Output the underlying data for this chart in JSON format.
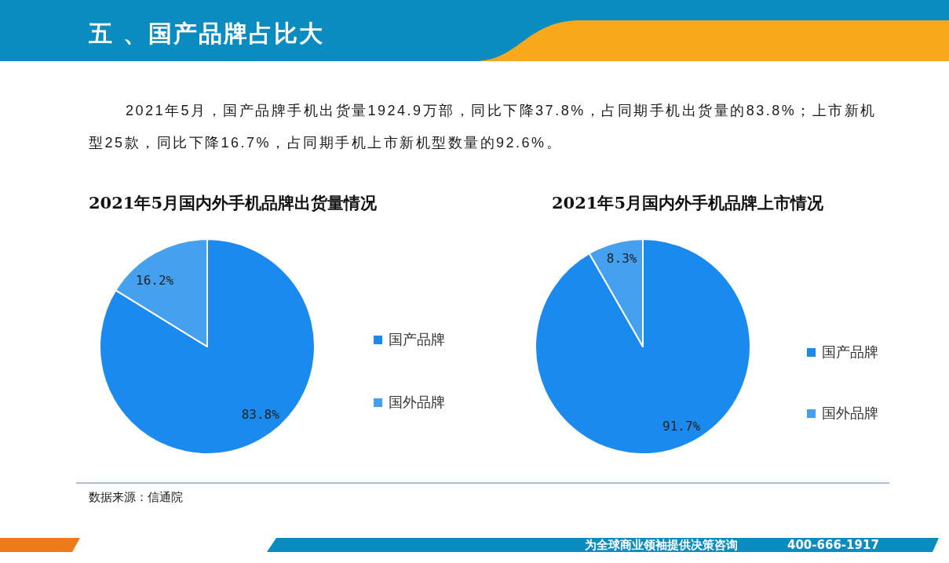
{
  "chart_data": [
    {
      "type": "other",
      "title": "五 、国产品牌占比大",
      "subtitle": "2021年5月，国产品牌手机出货量1924.9万部，同比下降37.8%，占同期手机出货量的83.8%；上市新机型25款，同比下降16.7%，占同期手机上市新机型数量的92.6%。",
      "annotations": [
        "数据来源：信通院",
        "为全球商业领袖提供决策咨询",
        "400-666-1917"
      ]
    },
    {
      "type": "pie",
      "title": "2021年5月国内外手机品牌出货量情况",
      "categories": [
        "国产品牌",
        "国外品牌"
      ],
      "values": [
        83.8,
        16.2
      ],
      "colors": [
        "#1a8aee",
        "#45a1f0"
      ],
      "value_labels": [
        "83.8%",
        "16.2%"
      ],
      "legend": "right"
    },
    {
      "type": "pie",
      "title": "2021年5月国内外手机品牌上市情况",
      "categories": [
        "国产品牌",
        "国外品牌"
      ],
      "values": [
        91.7,
        8.3
      ],
      "colors": [
        "#1a8aee",
        "#45a1f0"
      ],
      "value_labels": [
        "91.7%",
        "8.3%"
      ],
      "legend": "right"
    }
  ]
}
